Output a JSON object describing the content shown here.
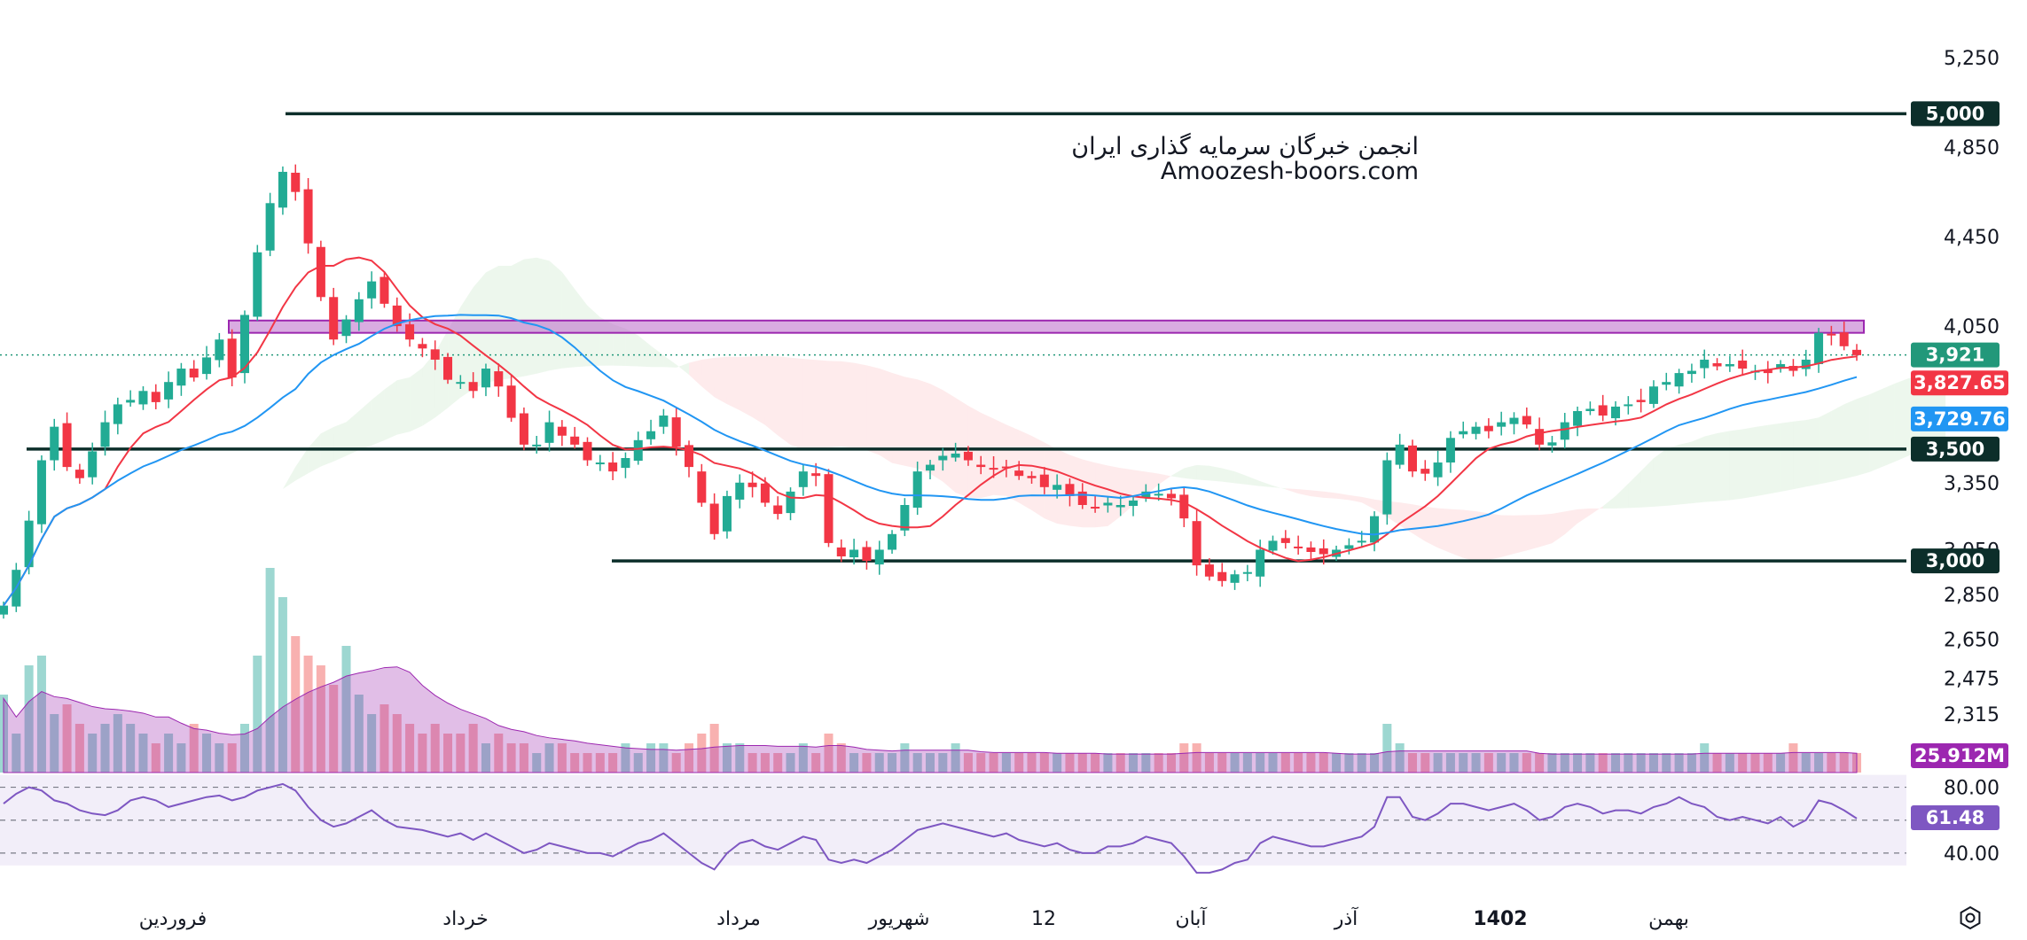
{
  "watermark": {
    "line1": "انجمن خبرگان سرمایه گذاری ایران",
    "line2": "Amoozesh-boors.com"
  },
  "chart_data": {
    "type": "candlestick",
    "price_axis": {
      "range": [
        2200,
        5350
      ],
      "tick_values": [
        5250,
        4850,
        4450,
        4050,
        3350,
        3050,
        2850,
        2650,
        2475,
        2315
      ],
      "tick_labels": [
        "5,250",
        "4,850",
        "4,450",
        "4,050",
        "3,350",
        "3,050",
        "2,850",
        "2,650",
        "2,475",
        "2,315"
      ]
    },
    "time_axis": {
      "labels": [
        "فروردین",
        "خرداد",
        "مرداد",
        "شهریور",
        "12",
        "آبان",
        "آذر",
        "1402",
        "بهمن"
      ],
      "bold_label": "1402"
    },
    "horizontal_levels": [
      {
        "value": 5000,
        "label": "5,000",
        "color": "#0c2e2a"
      },
      {
        "value": 3500,
        "label": "3,500",
        "color": "#0c2e2a"
      },
      {
        "value": 3000,
        "label": "3,000",
        "color": "#0c2e2a"
      }
    ],
    "resistance_zone": {
      "from": 4020,
      "to": 4075,
      "color": "#ba68c8"
    },
    "last_price": {
      "value": 3921,
      "label": "3,921",
      "color": "#22987a"
    },
    "moving_averages": [
      {
        "value": 3827.65,
        "label": "3,827.65",
        "color": "#f23645"
      },
      {
        "value": 3729.76,
        "label": "3,729.76",
        "color": "#2196f3"
      }
    ],
    "close_series": [
      2800,
      2960,
      3180,
      3450,
      3600,
      3420,
      3370,
      3490,
      3620,
      3700,
      3720,
      3760,
      3710,
      3800,
      3860,
      3820,
      3910,
      3990,
      3820,
      4100,
      4380,
      4600,
      4740,
      4650,
      4420,
      4180,
      3990,
      4080,
      4170,
      4250,
      4150,
      4050,
      3990,
      3950,
      3900,
      3810,
      3800,
      3760,
      3860,
      3780,
      3640,
      3520,
      3520,
      3620,
      3560,
      3520,
      3450,
      3440,
      3400,
      3460,
      3540,
      3580,
      3650,
      3510,
      3420,
      3260,
      3120,
      3290,
      3350,
      3330,
      3260,
      3210,
      3310,
      3400,
      3380,
      3080,
      3020,
      3050,
      3000,
      3050,
      3120,
      3250,
      3400,
      3430,
      3470,
      3480,
      3450,
      3420,
      3410,
      3420,
      3380,
      3370,
      3330,
      3340,
      3290,
      3250,
      3240,
      3260,
      3250,
      3270,
      3310,
      3300,
      3280,
      3190,
      2980,
      2930,
      2910,
      2940,
      2950,
      3050,
      3090,
      3080,
      3060,
      3040,
      3030,
      3050,
      3070,
      3090,
      3200,
      3450,
      3520,
      3400,
      3390,
      3440,
      3550,
      3580,
      3600,
      3580,
      3620,
      3640,
      3610,
      3520,
      3530,
      3620,
      3670,
      3680,
      3650,
      3690,
      3700,
      3710,
      3780,
      3800,
      3840,
      3850,
      3900,
      3870,
      3880,
      3860,
      3850,
      3840,
      3880,
      3850,
      3900,
      4020,
      4010,
      3960,
      3920
    ],
    "volume_series": [
      0.8,
      0.4,
      1.1,
      1.2,
      0.6,
      0.7,
      0.5,
      0.4,
      0.5,
      0.6,
      0.5,
      0.4,
      0.3,
      0.4,
      0.3,
      0.5,
      0.4,
      0.3,
      0.3,
      0.5,
      1.2,
      2.1,
      1.8,
      1.4,
      1.2,
      1.1,
      0.9,
      1.3,
      0.8,
      0.6,
      0.7,
      0.6,
      0.5,
      0.4,
      0.5,
      0.4,
      0.4,
      0.5,
      0.3,
      0.4,
      0.3,
      0.3,
      0.2,
      0.3,
      0.3,
      0.2,
      0.2,
      0.2,
      0.2,
      0.3,
      0.2,
      0.3,
      0.3,
      0.2,
      0.3,
      0.4,
      0.5,
      0.3,
      0.3,
      0.2,
      0.2,
      0.2,
      0.2,
      0.3,
      0.2,
      0.4,
      0.3,
      0.2,
      0.2,
      0.2,
      0.2,
      0.3,
      0.2,
      0.2,
      0.2,
      0.3,
      0.2,
      0.2,
      0.2,
      0.2,
      0.2,
      0.2,
      0.2,
      0.2,
      0.2,
      0.2,
      0.2,
      0.2,
      0.2,
      0.2,
      0.2,
      0.2,
      0.2,
      0.3,
      0.3,
      0.2,
      0.2,
      0.2,
      0.2,
      0.2,
      0.2,
      0.2,
      0.2,
      0.2,
      0.2,
      0.2,
      0.2,
      0.2,
      0.2,
      0.5,
      0.3,
      0.2,
      0.2,
      0.2,
      0.2,
      0.2,
      0.2,
      0.2,
      0.2,
      0.2,
      0.2,
      0.2,
      0.2,
      0.2,
      0.2,
      0.2,
      0.2,
      0.2,
      0.2,
      0.2,
      0.2,
      0.2,
      0.2,
      0.2,
      0.3,
      0.2,
      0.2,
      0.2,
      0.2,
      0.2,
      0.2,
      0.3,
      0.2,
      0.2,
      0.2,
      0.2,
      0.2
    ],
    "volume": {
      "value": 25.912,
      "label": "25.912M",
      "color": "#9c27b0"
    },
    "rsi": {
      "value": 61.48,
      "label": "61.48",
      "levels": [
        80,
        40
      ],
      "level_labels": [
        "80.00",
        "40.00"
      ],
      "color": "#7e57c2",
      "series": [
        70,
        76,
        80,
        78,
        72,
        70,
        66,
        64,
        63,
        66,
        72,
        74,
        72,
        68,
        70,
        72,
        74,
        75,
        72,
        74,
        78,
        80,
        82,
        78,
        68,
        60,
        56,
        58,
        62,
        66,
        60,
        56,
        55,
        54,
        52,
        50,
        52,
        48,
        52,
        48,
        44,
        40,
        42,
        46,
        44,
        42,
        40,
        40,
        38,
        42,
        46,
        48,
        52,
        46,
        40,
        34,
        30,
        40,
        46,
        48,
        44,
        42,
        46,
        50,
        48,
        36,
        34,
        36,
        34,
        38,
        42,
        48,
        54,
        56,
        58,
        56,
        54,
        52,
        50,
        52,
        48,
        46,
        44,
        46,
        42,
        40,
        40,
        44,
        44,
        46,
        50,
        48,
        46,
        38,
        28,
        28,
        30,
        34,
        36,
        46,
        50,
        48,
        46,
        44,
        44,
        46,
        48,
        50,
        56,
        74,
        74,
        62,
        60,
        64,
        70,
        70,
        68,
        66,
        68,
        70,
        66,
        60,
        62,
        68,
        70,
        68,
        64,
        66,
        66,
        64,
        68,
        70,
        74,
        70,
        68,
        62,
        60,
        62,
        60,
        58,
        62,
        56,
        60,
        72,
        70,
        66,
        61
      ]
    }
  }
}
